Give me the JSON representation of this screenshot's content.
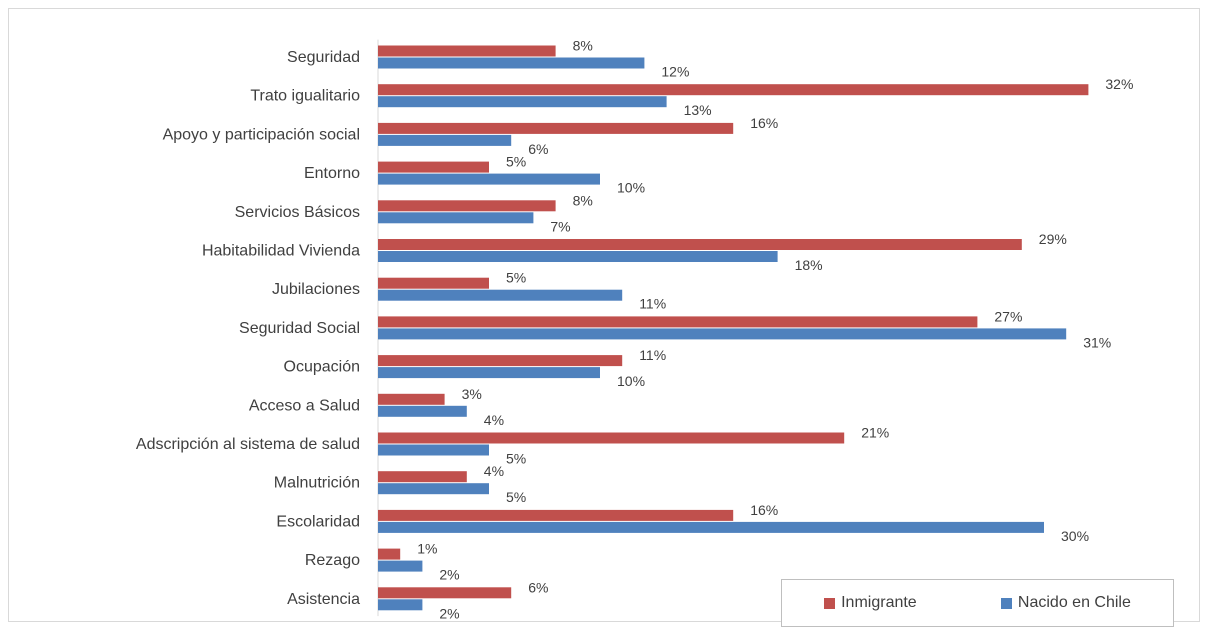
{
  "chart_data": {
    "type": "bar",
    "orientation": "horizontal",
    "categories": [
      "Seguridad",
      "Trato igualitario",
      "Apoyo y participación social",
      "Entorno",
      "Servicios Básicos",
      "Habitabilidad Vivienda",
      "Jubilaciones",
      "Seguridad Social",
      "Ocupación",
      "Acceso a Salud",
      "Adscripción al sistema de salud",
      "Malnutrición",
      "Escolaridad",
      "Rezago",
      "Asistencia"
    ],
    "series": [
      {
        "name": "Inmigrante",
        "color": "#c0504d",
        "values": [
          8,
          32,
          16,
          5,
          8,
          29,
          5,
          27,
          11,
          3,
          21,
          4,
          16,
          1,
          6
        ],
        "labels": [
          "8%",
          "32%",
          "16%",
          "5%",
          "8%",
          "29%",
          "5%",
          "27%",
          "11%",
          "3%",
          "21%",
          "4%",
          "16%",
          "1%",
          "6%"
        ]
      },
      {
        "name": "Nacido en Chile",
        "color": "#4f81bd",
        "values": [
          12,
          13,
          6,
          10,
          7,
          18,
          11,
          31,
          10,
          4,
          5,
          5,
          30,
          2,
          2
        ],
        "labels": [
          "12%",
          "13%",
          "6%",
          "10%",
          "7%",
          "18%",
          "11%",
          "31%",
          "10%",
          "4%",
          "5%",
          "5%",
          "30%",
          "2%",
          "2%"
        ]
      }
    ],
    "title": "",
    "xlabel": "",
    "ylabel": "",
    "xlim": [
      0,
      32
    ],
    "grid": false,
    "legend_position": "bottom-right"
  }
}
